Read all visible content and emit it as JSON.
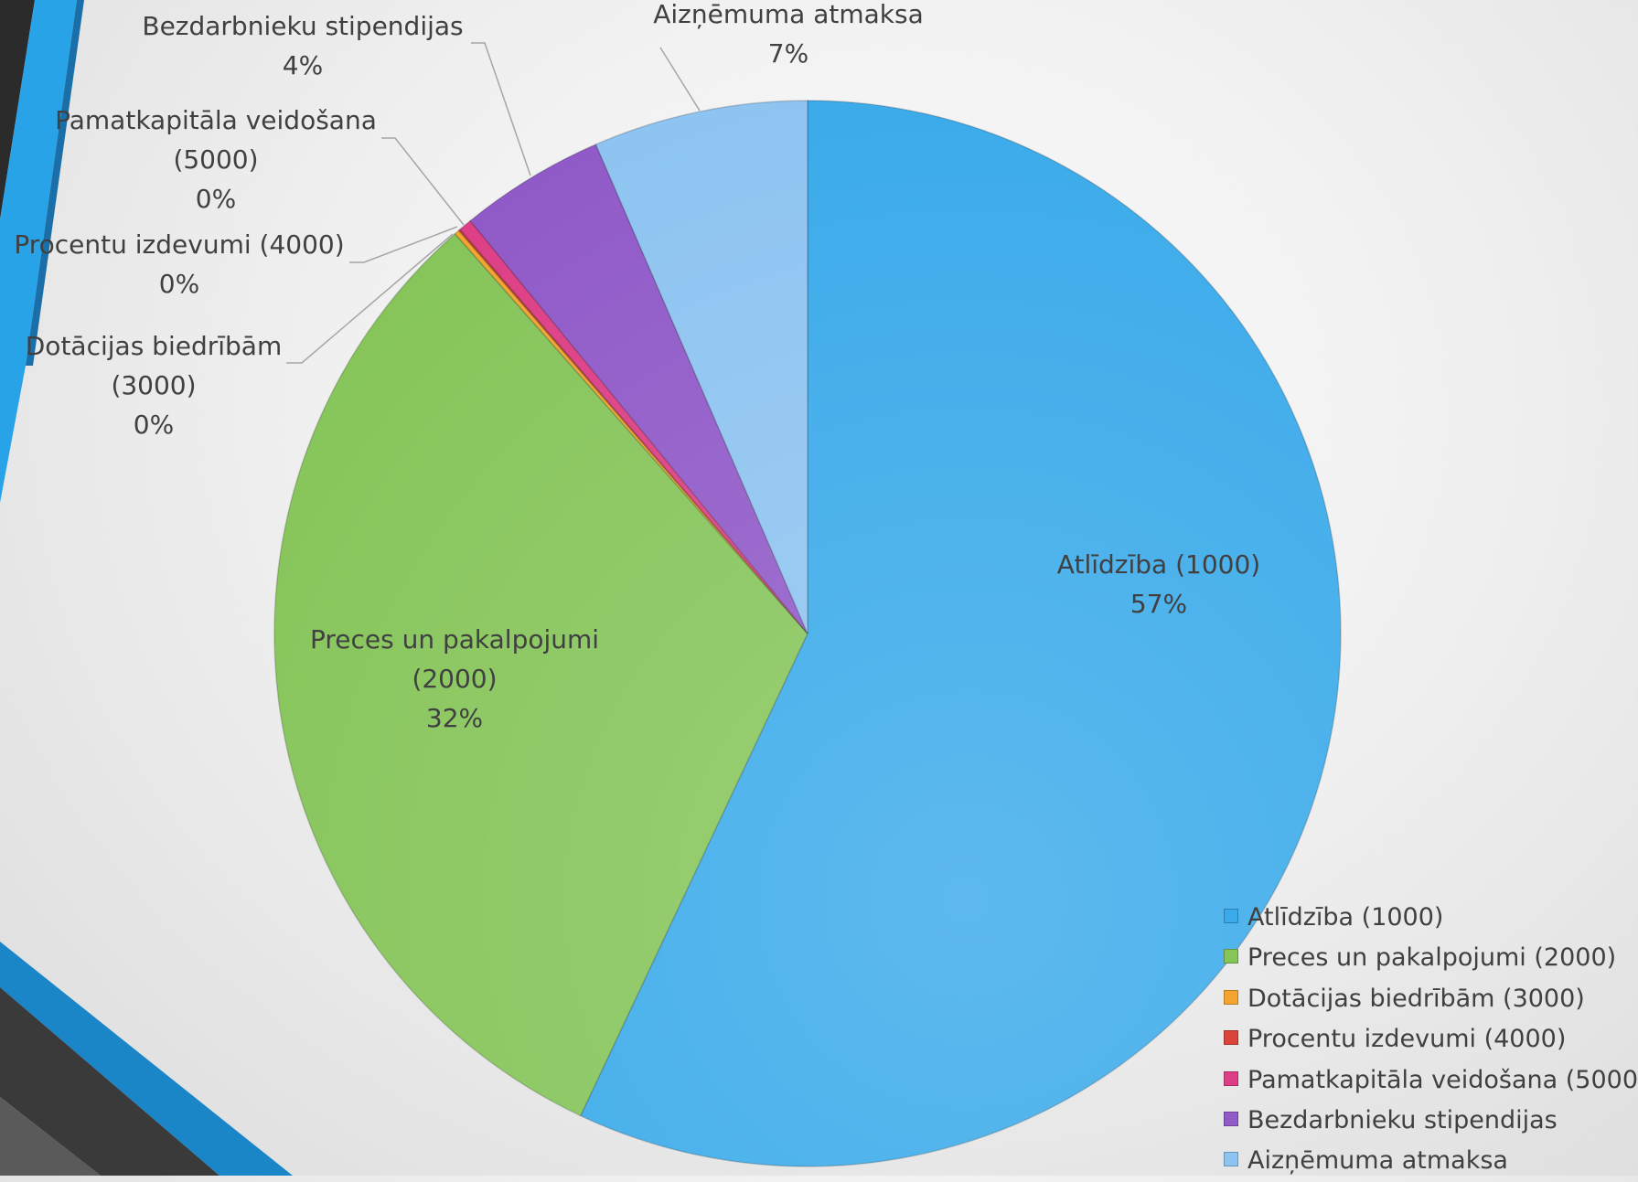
{
  "chart_data": {
    "type": "pie",
    "title": "",
    "unit": "%",
    "legend_position": "bottom-right",
    "start_angle_deg": 0,
    "direction": "clockwise",
    "slices": [
      {
        "label": "Atlīdzība (1000)",
        "value": 57.0,
        "display": "57%",
        "color": "#3aaaea",
        "callout": false
      },
      {
        "label": "Preces un pakalpojumi (2000)",
        "value": 31.5,
        "display": "32%",
        "color": "#86c55a",
        "callout": false
      },
      {
        "label": "Dotācijas biedrībām (3000)",
        "value": 0.15,
        "display": "0%",
        "color": "#f4a531",
        "callout": true
      },
      {
        "label": "Procentu izdevumi (4000)",
        "value": 0.05,
        "display": "0%",
        "color": "#d9453a",
        "callout": true
      },
      {
        "label": "Pamatkapitāla veidošana (5000)",
        "value": 0.4,
        "display": "0%",
        "color": "#dd3f86",
        "callout": true
      },
      {
        "label": "Bezdarbnieku stipendijas",
        "value": 4.4,
        "display": "4%",
        "color": "#905ac8",
        "callout": true
      },
      {
        "label": "Aizņēmuma atmaksa",
        "value": 6.5,
        "display": "7%",
        "color": "#8ec4f1",
        "callout": true
      }
    ]
  }
}
